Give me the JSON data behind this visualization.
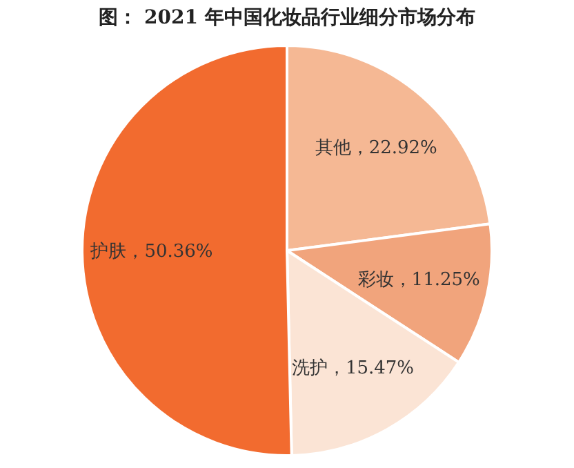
{
  "chart_data": {
    "type": "pie",
    "title": "图： 2021 年中国化妆品行业细分市场分布",
    "categories": [
      "其他",
      "彩妆",
      "洗护",
      "护肤"
    ],
    "values": [
      22.92,
      11.25,
      15.47,
      50.36
    ],
    "colors": [
      "#f5b894",
      "#f1a47c",
      "#fbe4d5",
      "#f26b2f"
    ],
    "value_labels": [
      "，22.92%",
      "，11.25%",
      "，15.47%",
      "，50.36%"
    ],
    "legend": false
  }
}
